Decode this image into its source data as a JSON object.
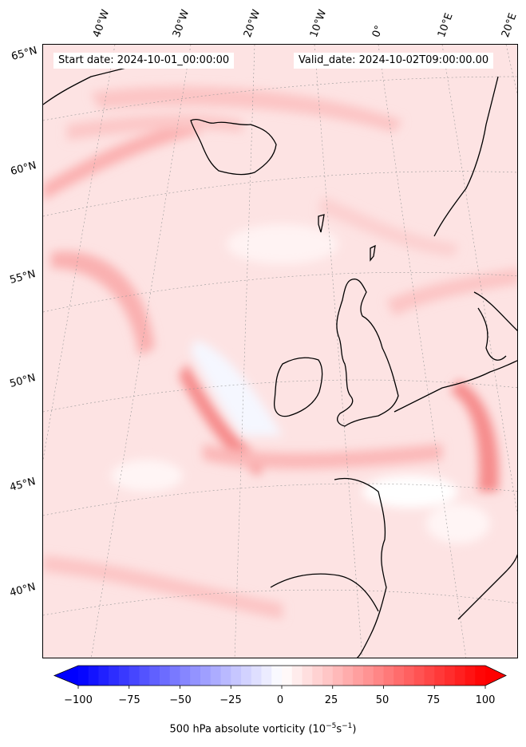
{
  "map": {
    "start_date": "Start date: 2024-10-01_00:00:00",
    "valid_date": "Valid_date: 2024-10-02T09:00:00.00",
    "lon_labels": [
      "40°W",
      "30°W",
      "20°W",
      "10°W",
      "0°",
      "10°E",
      "20°E"
    ],
    "lat_labels": [
      "65°N",
      "60°N",
      "55°N",
      "50°N",
      "45°N",
      "40°N"
    ],
    "colors": {
      "positive": "#ff0000",
      "negative": "#0000ff",
      "neutral": "#ffffff",
      "coastline": "#000000"
    }
  },
  "colorbar": {
    "label_prefix": "500 hPa absolute vorticity (10",
    "label_exp1": "−5",
    "label_mid": "s",
    "label_exp2": "−1",
    "label_suffix": ")",
    "ticks": [
      "−100",
      "−75",
      "−50",
      "−25",
      "0",
      "25",
      "50",
      "75",
      "100"
    ],
    "min": -100,
    "max": 100,
    "extend": "both"
  }
}
